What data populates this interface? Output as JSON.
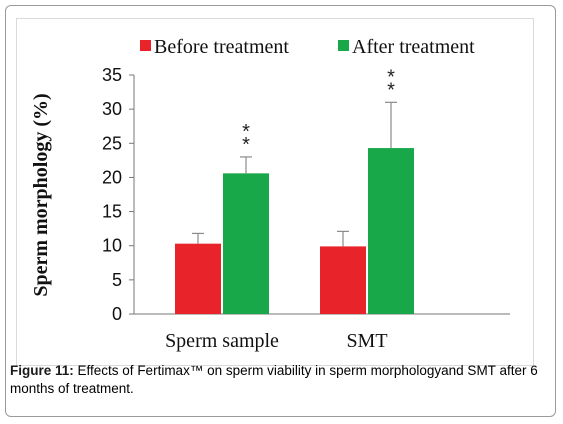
{
  "caption": {
    "label": "Figure 11:",
    "text": " Effects of Fertimax™ on sperm viability in sperm morphologyand SMT after 6 months of treatment."
  },
  "colors": {
    "before": "#e8242a",
    "after": "#18a84a",
    "errorbar": "#8a8a8a"
  },
  "chart_data": {
    "type": "bar",
    "categories": [
      "Sperm sample",
      "SMT"
    ],
    "series": [
      {
        "name": "Before treatment",
        "values": [
          10.3,
          9.9
        ],
        "errors": [
          1.5,
          2.2
        ],
        "color": "#e8242a"
      },
      {
        "name": "After treatment",
        "values": [
          20.6,
          24.3
        ],
        "errors": [
          2.4,
          6.7
        ],
        "color": "#18a84a"
      }
    ],
    "annotations": [
      {
        "category": 0,
        "series": 1,
        "text": "**"
      },
      {
        "category": 1,
        "series": 1,
        "text": "**"
      }
    ],
    "title": "",
    "xlabel": "",
    "ylabel": "Sperm morphology (%)",
    "ylim": [
      0,
      35
    ],
    "yticks": [
      0,
      5,
      10,
      15,
      20,
      25,
      30,
      35
    ],
    "grid": false,
    "legend_position": "top"
  }
}
